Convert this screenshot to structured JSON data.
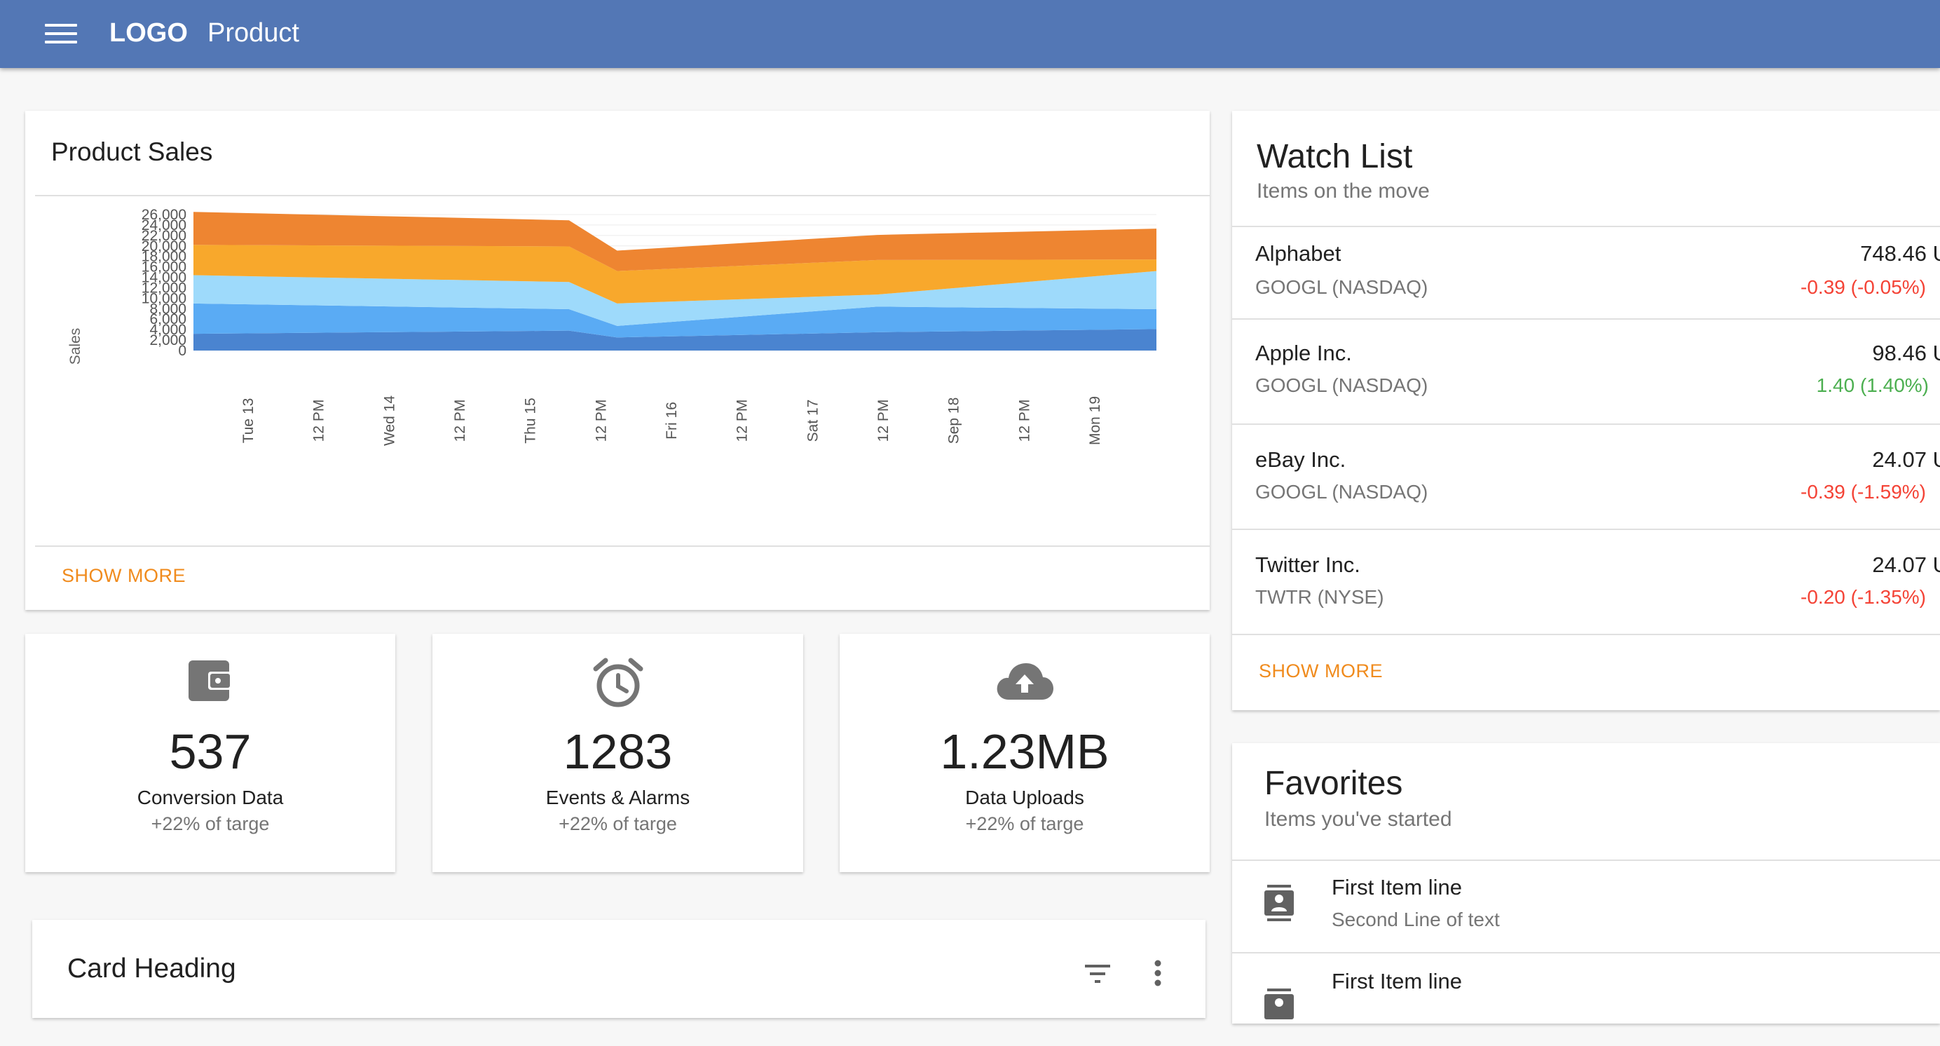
{
  "app_bar": {
    "logo": "LOGO",
    "title": "Product",
    "menu_icon": "menu-icon",
    "color": "#5377b5"
  },
  "product_sales": {
    "title": "Product Sales",
    "show_more": "SHOW MORE"
  },
  "chart_data": {
    "type": "area",
    "stacked": true,
    "title": "Product Sales",
    "xlabel": "",
    "ylabel": "Sales",
    "ylim": [
      0,
      26000
    ],
    "y_ticks": [
      0,
      2000,
      4000,
      6000,
      8000,
      10000,
      12000,
      14000,
      16000,
      18000,
      20000,
      22000,
      24000,
      26000
    ],
    "y_tick_labels": [
      "0",
      "2,000",
      "4,000",
      "6,000",
      "8,000",
      "10,000",
      "12,000",
      "14,000",
      "16,000",
      "18,000",
      "20,000",
      "22,000",
      "24,000",
      "26,000"
    ],
    "x_tick_labels": [
      "Tue 13",
      "12 PM",
      "Wed 14",
      "12 PM",
      "Thu 15",
      "12 PM",
      "Fri 16",
      "12 PM",
      "Sat 17",
      "12 PM",
      "Sep 18",
      "12 PM",
      "Mon 19"
    ],
    "x": [
      "Tue 13",
      "Thu 15 12 PM",
      "Fri 16",
      "Sat 17 12 PM",
      "Mon 19 12 PM"
    ],
    "series": [
      {
        "values": [
          3200,
          3800,
          2500,
          3500,
          4100
        ],
        "color": "#4a84d0"
      },
      {
        "values": [
          5800,
          4100,
          2200,
          4900,
          3800
        ],
        "color": "#5aabf4"
      },
      {
        "values": [
          5400,
          5200,
          4300,
          2300,
          7300
        ],
        "color": "#9edafb"
      },
      {
        "values": [
          5800,
          6800,
          6200,
          6600,
          2200
        ],
        "color": "#f8a82c"
      },
      {
        "values": [
          6300,
          5000,
          3900,
          4800,
          5900
        ],
        "color": "#ee8531"
      }
    ],
    "grid": true,
    "legend": "none"
  },
  "stats": [
    {
      "icon": "wallet-icon",
      "value": "537",
      "label": "Conversion Data",
      "sub": "+22% of targe"
    },
    {
      "icon": "alarm-clock-icon",
      "value": "1283",
      "label": "Events & Alarms",
      "sub": "+22% of targe"
    },
    {
      "icon": "cloud-upload-icon",
      "value": "1.23MB",
      "label": "Data Uploads",
      "sub": "+22% of targe"
    }
  ],
  "watch_list": {
    "title": "Watch List",
    "subtitle": "Items on the move",
    "show_more": "SHOW MORE",
    "items": [
      {
        "name": "Alphabet",
        "ticker": "GOOGL (NASDAQ)",
        "price": "748.46 U",
        "change": "-0.39 (-0.05%)",
        "direction": "neg"
      },
      {
        "name": "Apple Inc.",
        "ticker": "GOOGL (NASDAQ)",
        "price": "98.46 U",
        "change": "1.40 (1.40%)",
        "direction": "pos"
      },
      {
        "name": "eBay Inc.",
        "ticker": "GOOGL (NASDAQ)",
        "price": "24.07 U",
        "change": "-0.39 (-1.59%)",
        "direction": "neg"
      },
      {
        "name": "Twitter Inc.",
        "ticker": "TWTR (NYSE)",
        "price": "24.07 U",
        "change": "-0.20 (-1.35%)",
        "direction": "neg"
      }
    ]
  },
  "favorites": {
    "title": "Favorites",
    "subtitle": "Items you've started",
    "items": [
      {
        "icon": "contact-card-icon",
        "primary": "First Item line",
        "secondary": "Second Line of text"
      },
      {
        "icon": "contact-card-icon",
        "primary": "First Item line",
        "secondary": ""
      }
    ]
  },
  "card_heading": {
    "title": "Card Heading",
    "filter_icon": "filter-icon",
    "more_icon": "more-vert-icon"
  }
}
